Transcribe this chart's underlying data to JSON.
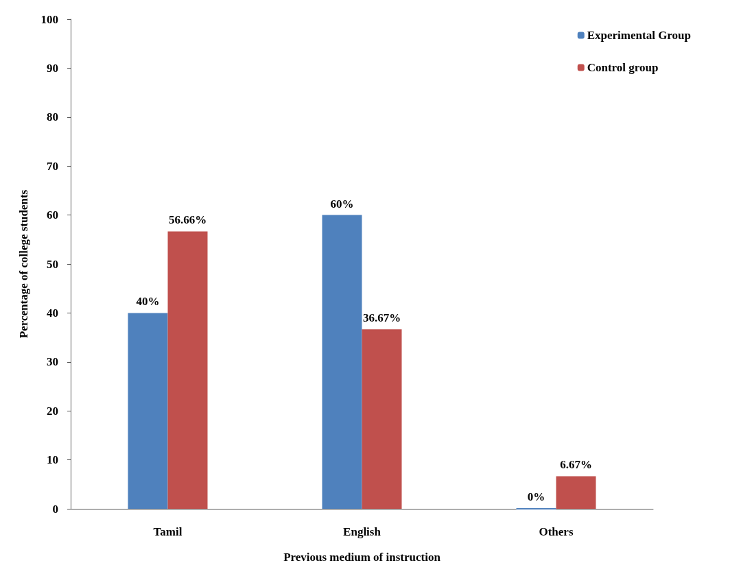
{
  "chart_data": {
    "type": "bar",
    "xlabel": "Previous medium of instruction",
    "ylabel": "Percentage of college students",
    "categories": [
      "Tamil",
      "English",
      "Others"
    ],
    "series": [
      {
        "name": "Experimental Group",
        "color": "#4f81bd",
        "values": [
          40,
          60,
          0
        ],
        "value_labels": [
          "40%",
          "60%",
          "0%"
        ]
      },
      {
        "name": "Control group",
        "color": "#c0504d",
        "values": [
          56.66,
          36.67,
          6.67
        ],
        "value_labels": [
          "56.66%",
          "36.67%",
          "6.67%"
        ]
      }
    ],
    "ylim": [
      0,
      100
    ],
    "yticks": [
      0,
      10,
      20,
      30,
      40,
      50,
      60,
      70,
      80,
      90,
      100
    ],
    "grid": false,
    "legend": "top right"
  }
}
